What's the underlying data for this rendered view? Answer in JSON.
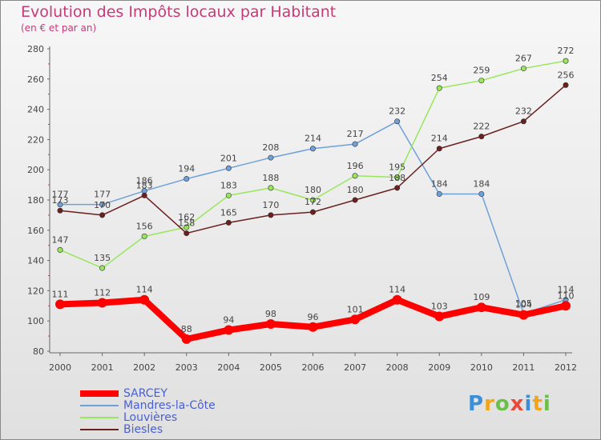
{
  "chart_data": {
    "type": "line",
    "title": "Evolution des Impôts locaux par Habitant",
    "subtitle": "(en € et par an)",
    "xlabel": "",
    "ylabel": "",
    "ylim": [
      80,
      280
    ],
    "yticks": [
      80,
      100,
      120,
      140,
      160,
      180,
      200,
      220,
      240,
      260,
      280
    ],
    "grid": false,
    "legend_position": "bottom-left",
    "x": [
      "2000",
      "2001",
      "2002",
      "2003",
      "2004",
      "2005",
      "2006",
      "2007",
      "2008",
      "2009",
      "2010",
      "2011",
      "2012"
    ],
    "series": [
      {
        "name": "SARCEY",
        "color": "#ff0000",
        "values": [
          111,
          112,
          114,
          88,
          94,
          98,
          96,
          101,
          114,
          103,
          109,
          104,
          110
        ]
      },
      {
        "name": "Mandres-la-Côte",
        "color": "#6fa0d8",
        "values": [
          177,
          177,
          186,
          194,
          201,
          208,
          214,
          217,
          232,
          184,
          184,
          105,
          114
        ]
      },
      {
        "name": "Louvières",
        "color": "#99e65c",
        "values": [
          147,
          135,
          156,
          162,
          183,
          188,
          180,
          196,
          195,
          254,
          259,
          267,
          272
        ]
      },
      {
        "name": "Biesles",
        "color": "#6b1f1f",
        "values": [
          173,
          170,
          183,
          158,
          165,
          170,
          172,
          180,
          188,
          214,
          222,
          232,
          256
        ]
      }
    ]
  },
  "logo": {
    "text": "Proxiti"
  }
}
